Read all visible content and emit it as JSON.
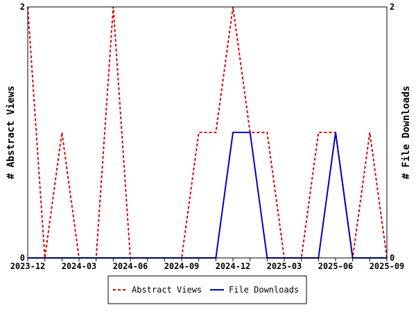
{
  "chart_data": {
    "type": "line",
    "x": [
      "2023-12",
      "2024-01",
      "2024-02",
      "2024-03",
      "2024-04",
      "2024-05",
      "2024-06",
      "2024-07",
      "2024-08",
      "2024-09",
      "2024-10",
      "2024-11",
      "2024-12",
      "2025-01",
      "2025-02",
      "2025-03",
      "2025-04",
      "2025-05",
      "2025-06",
      "2025-07",
      "2025-08",
      "2025-09"
    ],
    "x_tick_labels": [
      "2023-12",
      "2024-03",
      "2024-06",
      "2024-09",
      "2024-12",
      "2025-03",
      "2025-06",
      "2025-09"
    ],
    "series": [
      {
        "name": "Abstract Views",
        "axis": "left",
        "color": "#dd0000",
        "style": "dashed",
        "values": [
          2,
          0,
          1,
          0,
          0,
          2,
          0,
          0,
          0,
          0,
          1,
          1,
          2,
          1,
          1,
          0,
          0,
          1,
          1,
          0,
          1,
          0
        ]
      },
      {
        "name": "File Downloads",
        "axis": "right",
        "color": "#0000bb",
        "style": "solid",
        "values": [
          0,
          0,
          0,
          0,
          0,
          0,
          0,
          0,
          0,
          0,
          0,
          0,
          1,
          1,
          0,
          0,
          0,
          0,
          1,
          0,
          0,
          0
        ]
      }
    ],
    "ylabel_left": "# Abstract Views",
    "ylabel_right": "# File Downloads",
    "ylim": [
      0,
      2
    ],
    "y_tick_labels": [
      "0",
      "2"
    ],
    "legend_position": "bottom-center",
    "grid": false
  }
}
